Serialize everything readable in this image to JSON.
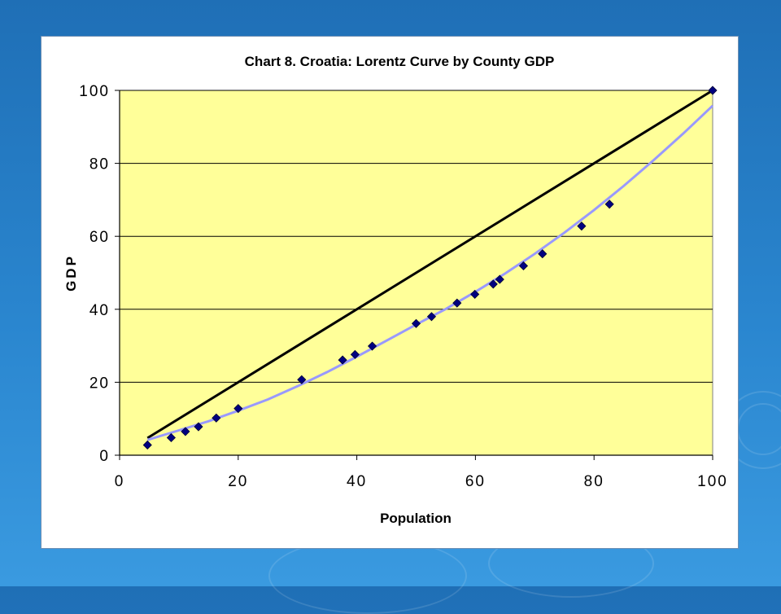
{
  "colors": {
    "plot_background": "#FFFF99",
    "equality_line": "#000000",
    "trend_line": "#9999FF",
    "markers": "#000080",
    "slide_background": "#2A86CF"
  },
  "chart_data": {
    "type": "scatter",
    "title": "Chart 8. Croatia: Lorentz Curve by County GDP",
    "xlabel": "Population",
    "ylabel": "GDP",
    "xlim": [
      0,
      100
    ],
    "ylim": [
      0,
      100
    ],
    "x_ticks": [
      0,
      20,
      40,
      60,
      80,
      100
    ],
    "y_ticks": [
      0,
      20,
      40,
      60,
      80,
      100
    ],
    "grid": "horizontal",
    "legend": "none",
    "series": [
      {
        "type": "scatter",
        "marker": "diamond",
        "points": [
          [
            4.7,
            2.8
          ],
          [
            8.7,
            4.8
          ],
          [
            11.1,
            6.5
          ],
          [
            13.3,
            7.8
          ],
          [
            16.3,
            10.2
          ],
          [
            20.0,
            12.8
          ],
          [
            30.7,
            20.7
          ],
          [
            37.6,
            26.1
          ],
          [
            39.7,
            27.6
          ],
          [
            42.6,
            29.9
          ],
          [
            50.0,
            36.1
          ],
          [
            52.6,
            38.0
          ],
          [
            56.9,
            41.7
          ],
          [
            59.9,
            44.1
          ],
          [
            63.0,
            46.9
          ],
          [
            64.1,
            48.2
          ],
          [
            68.1,
            51.9
          ],
          [
            71.3,
            55.2
          ],
          [
            77.9,
            62.8
          ],
          [
            82.6,
            68.8
          ],
          [
            100.0,
            100.0
          ]
        ]
      },
      {
        "type": "line",
        "style": "equality",
        "points": [
          [
            4.7,
            4.7
          ],
          [
            100,
            100
          ]
        ]
      },
      {
        "type": "line",
        "style": "trendline",
        "points": [
          [
            4.7,
            4.2
          ],
          [
            10,
            6.8
          ],
          [
            15,
            9.3
          ],
          [
            20,
            12.2
          ],
          [
            25,
            15.3
          ],
          [
            30,
            18.9
          ],
          [
            35,
            22.8
          ],
          [
            40,
            27.0
          ],
          [
            45,
            31.4
          ],
          [
            50,
            35.8
          ],
          [
            55,
            40.1
          ],
          [
            60,
            44.8
          ],
          [
            65,
            49.8
          ],
          [
            70,
            55.2
          ],
          [
            75,
            61.0
          ],
          [
            80,
            67.2
          ],
          [
            85,
            73.8
          ],
          [
            90,
            80.8
          ],
          [
            95,
            88.1
          ],
          [
            100,
            95.8
          ]
        ]
      }
    ]
  }
}
